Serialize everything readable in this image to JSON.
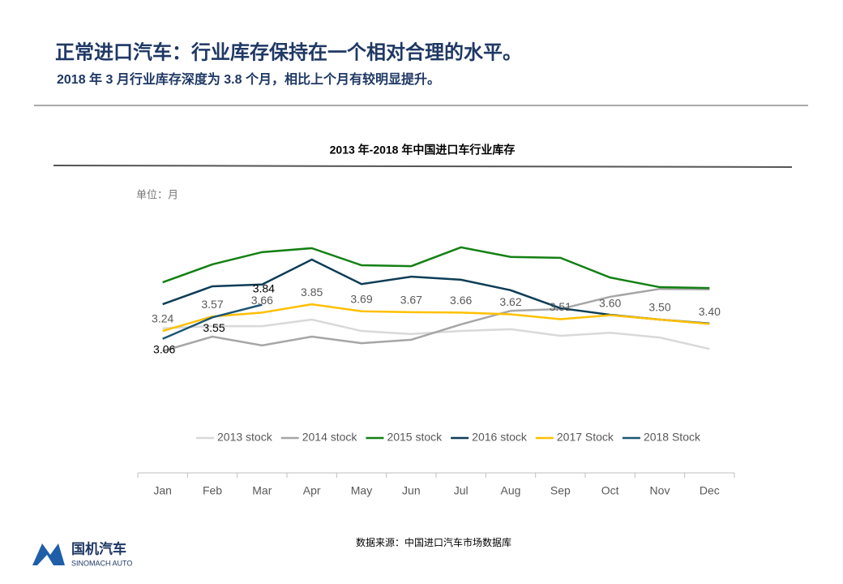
{
  "header": {
    "title": "正常进口汽车：行业库存保持在一个相对合理的水平。",
    "subtitle": "2018 年 3 月行业库存深度为 3.8 个月，相比上个月有较明显提升。"
  },
  "chart_data": {
    "type": "line",
    "title": "2013 年-2018 年中国进口车行业库存",
    "y_label": "单位：月",
    "categories": [
      "Jan",
      "Feb",
      "Mar",
      "Apr",
      "May",
      "Jun",
      "Jul",
      "Aug",
      "Sep",
      "Oct",
      "Nov",
      "Dec"
    ],
    "ylim": [
      0,
      6
    ],
    "series": [
      {
        "name": "2013 stock",
        "color": "#d9d9d9",
        "values": [
          3.3,
          3.35,
          3.35,
          3.5,
          3.24,
          3.17,
          3.24,
          3.28,
          3.13,
          3.2,
          3.09,
          2.83
        ]
      },
      {
        "name": "2014 stock",
        "color": "#a6a6a6",
        "values": [
          2.78,
          3.11,
          2.91,
          3.11,
          2.96,
          3.04,
          3.39,
          3.7,
          3.74,
          4.02,
          4.2,
          4.19
        ]
      },
      {
        "name": "2015 stock",
        "color": "#138013",
        "values": [
          4.35,
          4.76,
          5.04,
          5.13,
          4.74,
          4.72,
          5.15,
          4.93,
          4.91,
          4.46,
          4.24,
          4.22
        ]
      },
      {
        "name": "2016 stock",
        "color": "#0d3d56",
        "values": [
          3.85,
          4.26,
          4.3,
          4.87,
          4.31,
          4.48,
          4.41,
          4.17,
          3.76,
          3.61,
          3.5,
          3.41
        ]
      },
      {
        "name": "2017 Stock",
        "color": "#ffc000",
        "values": [
          3.24,
          3.57,
          3.66,
          3.85,
          3.69,
          3.67,
          3.66,
          3.62,
          3.51,
          3.6,
          3.5,
          3.4
        ],
        "value_labels": [
          "3.24",
          "3.57",
          "3.66",
          "3.85",
          "3.69",
          "3.67",
          "3.66",
          "3.62",
          "3.51",
          "3.60",
          "3.50",
          "3.40"
        ]
      },
      {
        "name": "2018 Stock",
        "color": "#1c5673",
        "values": [
          3.06,
          3.55,
          3.84,
          null,
          null,
          null,
          null,
          null,
          null,
          null,
          null,
          null
        ]
      }
    ]
  },
  "source": "数据来源：中国进口汽车市场数据库",
  "logo": {
    "name": "国机汽车",
    "sub": "SINOMACH AUTO"
  }
}
